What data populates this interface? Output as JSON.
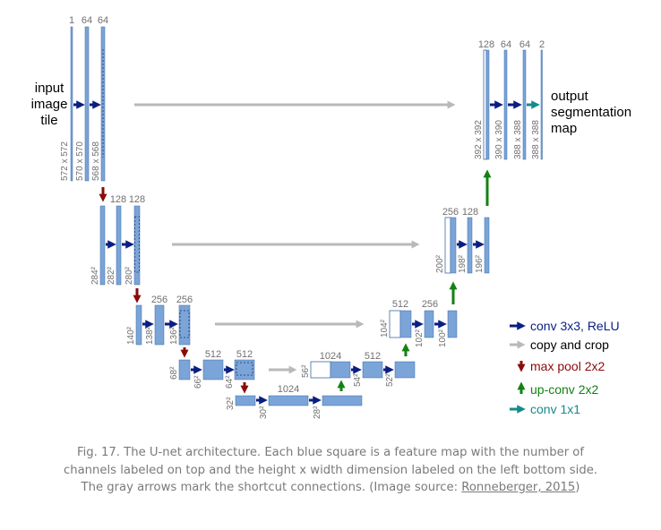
{
  "colors": {
    "feature_map_fill": "#7ba4d8",
    "feature_map_stroke": "#3d6aa8",
    "conv_arrow": "#0a1e82",
    "copy_arrow": "#b9b9b9",
    "pool_arrow": "#8b0a0a",
    "upconv_arrow": "#128212",
    "conv1x1_arrow": "#168a8a",
    "label_gray": "#707070",
    "text": "#000000"
  },
  "labels": {
    "input_text": [
      "input",
      "image",
      "tile"
    ],
    "output_text": [
      "output",
      "segmentation",
      "map"
    ],
    "channels": {
      "e1": [
        "1",
        "64",
        "64"
      ],
      "e2": [
        "128",
        "128"
      ],
      "e3": [
        "256",
        "256"
      ],
      "e4": [
        "512",
        "512"
      ],
      "bottom": [
        "1024"
      ],
      "d4": [
        "1024",
        "512"
      ],
      "d3": [
        "512",
        "256"
      ],
      "d2": [
        "256",
        "128"
      ],
      "d1": [
        "128",
        "64",
        "64",
        "2"
      ]
    },
    "dims": {
      "e1": [
        "572 x 572",
        "570 x 570",
        "568 x 568"
      ],
      "e2": [
        "284²",
        "282²",
        "280²"
      ],
      "e3": [
        "140²",
        "138²",
        "136²"
      ],
      "e4": [
        "68²",
        "66²",
        "64²"
      ],
      "bottom": [
        "32²",
        "30²",
        "28²"
      ],
      "d4": [
        "56²",
        "54²",
        "52²"
      ],
      "d3": [
        "104²",
        "102²",
        "100²"
      ],
      "d2": [
        "200²",
        "198²",
        "196²"
      ],
      "d1": [
        "392 x 392",
        "390 x 390",
        "388 x 388",
        "388 x 388"
      ]
    }
  },
  "legend": [
    {
      "label": "conv 3x3, ReLU",
      "kind": "conv_arrow"
    },
    {
      "label": "copy and crop",
      "kind": "copy_arrow"
    },
    {
      "label": "max pool 2x2",
      "kind": "pool_arrow"
    },
    {
      "label": "up-conv 2x2",
      "kind": "upconv_arrow"
    },
    {
      "label": "conv 1x1",
      "kind": "conv1x1_arrow"
    }
  ],
  "caption": {
    "text": "Fig. 17. The U-net architecture. Each blue square is a feature map with the number of channels labeled on top and the height x width dimension labeled on the left bottom side. The gray arrows mark the shortcut connections. (Image source: ",
    "source_link": "Ronneberger, 2015",
    "tail": ")"
  }
}
